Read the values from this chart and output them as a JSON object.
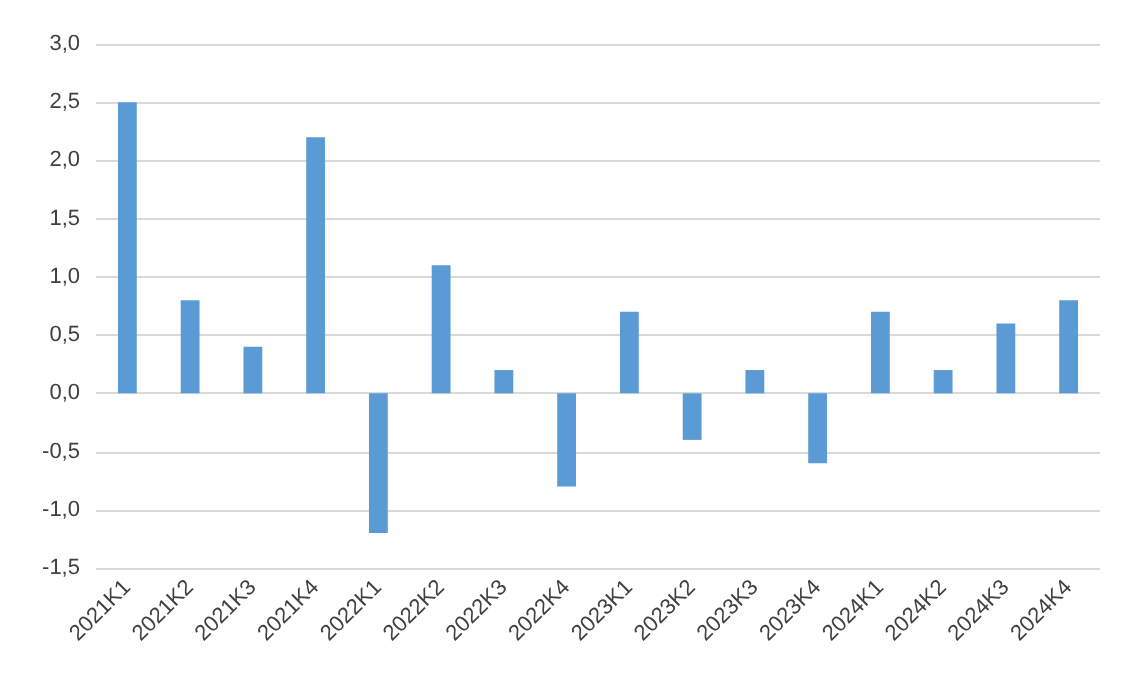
{
  "chart_data": {
    "type": "bar",
    "categories": [
      "2021K1",
      "2021K2",
      "2021K3",
      "2021K4",
      "2022K1",
      "2022K2",
      "2022K3",
      "2022K4",
      "2023K1",
      "2023K2",
      "2023K3",
      "2023K4",
      "2024K1",
      "2024K2",
      "2024K3",
      "2024K4"
    ],
    "values": [
      2.5,
      0.8,
      0.4,
      2.2,
      -1.2,
      1.1,
      0.2,
      -0.8,
      0.7,
      -0.4,
      0.2,
      -0.6,
      0.7,
      0.2,
      0.6,
      0.8
    ],
    "color": "#5b9bd5",
    "ylim": [
      -1.5,
      3.0
    ],
    "yticks": [
      {
        "value": -1.5,
        "label": "-1,5"
      },
      {
        "value": -1.0,
        "label": "-1,0"
      },
      {
        "value": -0.5,
        "label": "-0,5"
      },
      {
        "value": 0,
        "label": "0,0"
      },
      {
        "value": 0.5,
        "label": "0,5"
      },
      {
        "value": 1.0,
        "label": "1,0"
      },
      {
        "value": 1.5,
        "label": "1,5"
      },
      {
        "value": 2.0,
        "label": "2,0"
      },
      {
        "value": 2.5,
        "label": "2,5"
      },
      {
        "value": 3.0,
        "label": "3,0"
      }
    ],
    "grid": "y"
  }
}
